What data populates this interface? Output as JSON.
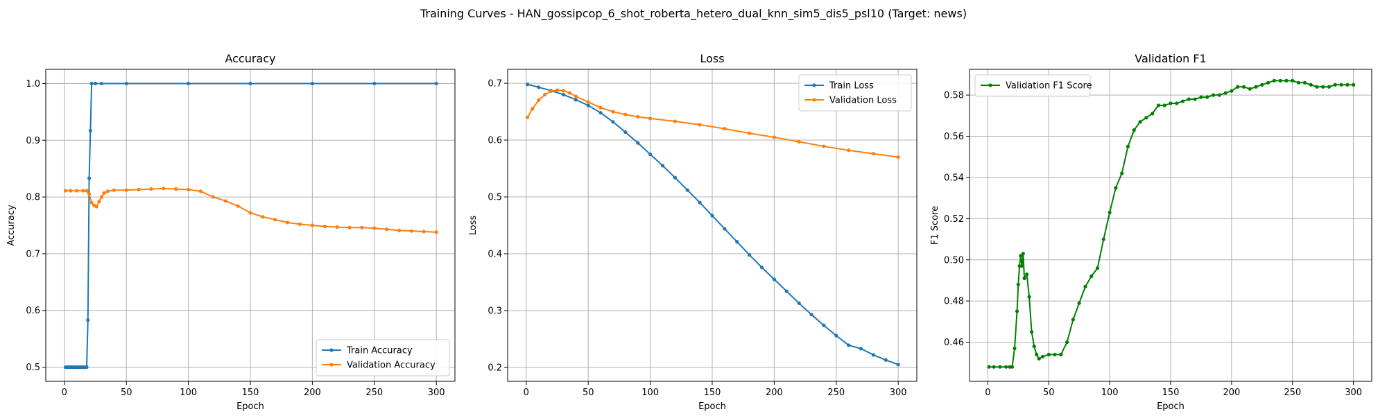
{
  "figure": {
    "suptitle": "Training Curves - HAN_gossipcop_6_shot_roberta_hetero_dual_knn_sim5_dis5_psl10 (Target: news)"
  },
  "chart_data": [
    {
      "type": "line",
      "title": "Accuracy",
      "xlabel": "Epoch",
      "ylabel": "Accuracy",
      "xlim": [
        -15,
        315
      ],
      "ylim": [
        0.475,
        1.025
      ],
      "xticks": [
        0,
        50,
        100,
        150,
        200,
        250,
        300
      ],
      "yticks": [
        0.5,
        0.6,
        0.7,
        0.8,
        0.9,
        1.0
      ],
      "ytick_labels": [
        "0.5",
        "0.6",
        "0.7",
        "0.8",
        "0.9",
        "1.0"
      ],
      "grid": true,
      "legend_position": "lower-right",
      "series": [
        {
          "name": "Train Accuracy",
          "color": "#1f77b4",
          "x": [
            1,
            2,
            3,
            4,
            5,
            6,
            7,
            8,
            9,
            10,
            11,
            12,
            13,
            14,
            15,
            16,
            17,
            18,
            19,
            20,
            21,
            22,
            25,
            30,
            50,
            100,
            150,
            200,
            250,
            300
          ],
          "y": [
            0.5,
            0.5,
            0.5,
            0.5,
            0.5,
            0.5,
            0.5,
            0.5,
            0.5,
            0.5,
            0.5,
            0.5,
            0.5,
            0.5,
            0.5,
            0.5,
            0.5,
            0.5,
            0.583,
            0.833,
            0.917,
            1.0,
            1.0,
            1.0,
            1.0,
            1.0,
            1.0,
            1.0,
            1.0,
            1.0
          ]
        },
        {
          "name": "Validation Accuracy",
          "color": "#ff7f0e",
          "x": [
            1,
            5,
            10,
            15,
            18,
            20,
            22,
            24,
            26,
            28,
            30,
            32,
            35,
            40,
            50,
            60,
            70,
            80,
            90,
            100,
            110,
            120,
            130,
            140,
            150,
            160,
            170,
            180,
            190,
            200,
            210,
            220,
            230,
            240,
            250,
            260,
            270,
            280,
            290,
            300
          ],
          "y": [
            0.811,
            0.811,
            0.811,
            0.811,
            0.811,
            0.805,
            0.79,
            0.785,
            0.783,
            0.792,
            0.8,
            0.807,
            0.81,
            0.812,
            0.812,
            0.813,
            0.814,
            0.815,
            0.814,
            0.813,
            0.81,
            0.8,
            0.793,
            0.784,
            0.772,
            0.765,
            0.76,
            0.755,
            0.752,
            0.75,
            0.748,
            0.747,
            0.746,
            0.746,
            0.745,
            0.743,
            0.741,
            0.74,
            0.739,
            0.738
          ]
        }
      ]
    },
    {
      "type": "line",
      "title": "Loss",
      "xlabel": "Epoch",
      "ylabel": "Loss",
      "xlim": [
        -15,
        315
      ],
      "ylim": [
        0.1755,
        0.7245
      ],
      "xticks": [
        0,
        50,
        100,
        150,
        200,
        250,
        300
      ],
      "yticks": [
        0.2,
        0.3,
        0.4,
        0.5,
        0.6,
        0.7
      ],
      "ytick_labels": [
        "0.2",
        "0.3",
        "0.4",
        "0.5",
        "0.6",
        "0.7"
      ],
      "grid": true,
      "legend_position": "upper-right",
      "series": [
        {
          "name": "Train Loss",
          "color": "#1f77b4",
          "x": [
            1,
            10,
            20,
            30,
            40,
            50,
            60,
            70,
            80,
            90,
            100,
            110,
            120,
            130,
            140,
            150,
            160,
            170,
            180,
            190,
            200,
            210,
            220,
            230,
            240,
            250,
            260,
            270,
            280,
            290,
            300
          ],
          "y": [
            0.698,
            0.693,
            0.687,
            0.68,
            0.671,
            0.661,
            0.648,
            0.632,
            0.614,
            0.595,
            0.575,
            0.555,
            0.534,
            0.512,
            0.49,
            0.467,
            0.444,
            0.421,
            0.398,
            0.376,
            0.355,
            0.334,
            0.313,
            0.293,
            0.274,
            0.256,
            0.239,
            0.233,
            0.222,
            0.213,
            0.205
          ]
        },
        {
          "name": "Validation Loss",
          "color": "#ff7f0e",
          "x": [
            1,
            5,
            10,
            15,
            20,
            25,
            30,
            35,
            40,
            50,
            60,
            70,
            80,
            90,
            100,
            120,
            140,
            160,
            180,
            200,
            220,
            240,
            260,
            280,
            300
          ],
          "y": [
            0.64,
            0.655,
            0.67,
            0.68,
            0.686,
            0.688,
            0.687,
            0.683,
            0.677,
            0.667,
            0.657,
            0.65,
            0.645,
            0.641,
            0.638,
            0.633,
            0.627,
            0.62,
            0.612,
            0.605,
            0.597,
            0.589,
            0.582,
            0.576,
            0.57
          ]
        }
      ]
    },
    {
      "type": "line",
      "title": "Validation F1",
      "xlabel": "Epoch",
      "ylabel": "F1 Score",
      "xlim": [
        -15,
        315
      ],
      "ylim": [
        0.441,
        0.5925
      ],
      "xticks": [
        0,
        50,
        100,
        150,
        200,
        250,
        300
      ],
      "yticks": [
        0.46,
        0.48,
        0.5,
        0.52,
        0.54,
        0.56,
        0.58
      ],
      "ytick_labels": [
        "0.46",
        "0.48",
        "0.50",
        "0.52",
        "0.54",
        "0.56",
        "0.58"
      ],
      "grid": true,
      "legend_position": "upper-left",
      "series": [
        {
          "name": "Validation F1 Score",
          "color": "#008000",
          "x": [
            1,
            5,
            10,
            15,
            18,
            20,
            22,
            24,
            25,
            26,
            27,
            28,
            29,
            30,
            32,
            34,
            36,
            38,
            40,
            42,
            45,
            50,
            55,
            60,
            65,
            70,
            75,
            80,
            85,
            90,
            95,
            100,
            105,
            110,
            115,
            120,
            125,
            130,
            135,
            140,
            145,
            150,
            155,
            160,
            165,
            170,
            175,
            180,
            185,
            190,
            195,
            200,
            205,
            210,
            215,
            220,
            225,
            230,
            235,
            240,
            245,
            250,
            255,
            260,
            265,
            270,
            275,
            280,
            285,
            290,
            295,
            300
          ],
          "y": [
            0.448,
            0.448,
            0.448,
            0.448,
            0.448,
            0.448,
            0.457,
            0.475,
            0.488,
            0.497,
            0.502,
            0.497,
            0.503,
            0.491,
            0.493,
            0.482,
            0.465,
            0.458,
            0.454,
            0.452,
            0.453,
            0.454,
            0.454,
            0.454,
            0.46,
            0.471,
            0.479,
            0.487,
            0.492,
            0.496,
            0.51,
            0.523,
            0.535,
            0.542,
            0.555,
            0.563,
            0.567,
            0.569,
            0.571,
            0.575,
            0.575,
            0.576,
            0.576,
            0.577,
            0.578,
            0.578,
            0.579,
            0.579,
            0.58,
            0.58,
            0.581,
            0.582,
            0.584,
            0.584,
            0.583,
            0.584,
            0.585,
            0.586,
            0.587,
            0.587,
            0.587,
            0.587,
            0.586,
            0.586,
            0.585,
            0.584,
            0.584,
            0.584,
            0.585,
            0.585,
            0.585,
            0.585
          ]
        }
      ]
    }
  ]
}
